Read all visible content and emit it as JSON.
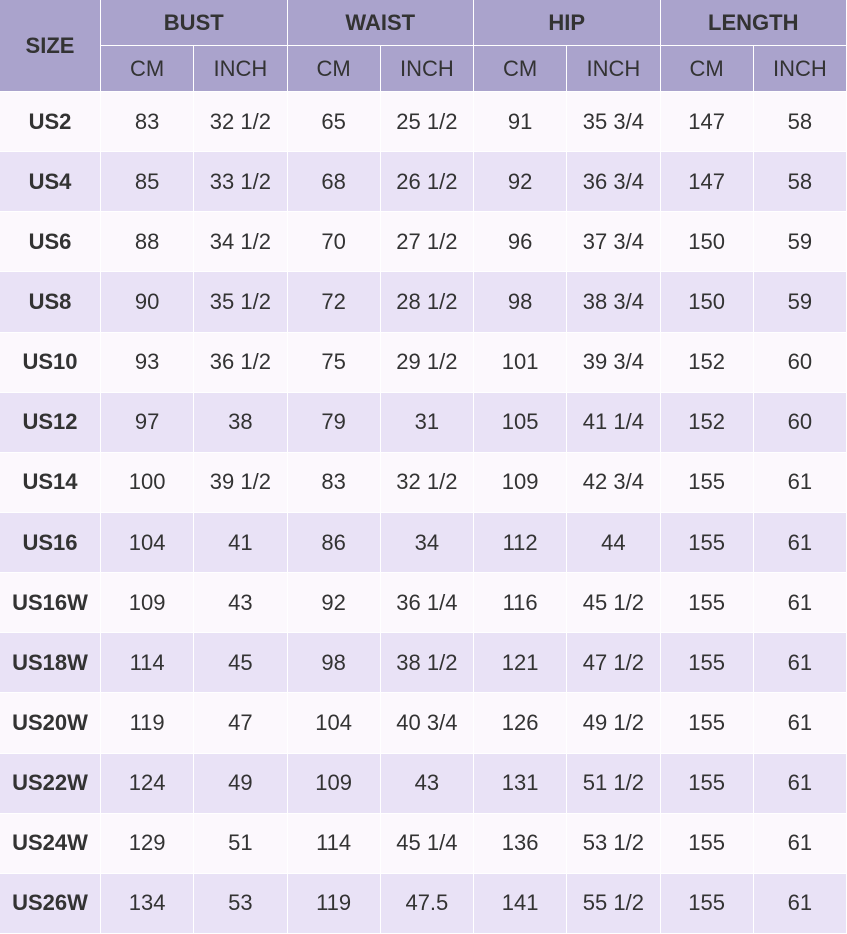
{
  "header": {
    "size": "SIZE",
    "groups": [
      "BUST",
      "WAIST",
      "HIP",
      "LENGTH"
    ],
    "units": [
      "CM",
      "INCH",
      "CM",
      "INCH",
      "CM",
      "INCH",
      "CM",
      "INCH"
    ]
  },
  "table": {
    "rows": [
      [
        "US2",
        "83",
        "32 1/2",
        "65",
        "25 1/2",
        "91",
        "35 3/4",
        "147",
        "58"
      ],
      [
        "US4",
        "85",
        "33 1/2",
        "68",
        "26 1/2",
        "92",
        "36 3/4",
        "147",
        "58"
      ],
      [
        "US6",
        "88",
        "34 1/2",
        "70",
        "27 1/2",
        "96",
        "37 3/4",
        "150",
        "59"
      ],
      [
        "US8",
        "90",
        "35 1/2",
        "72",
        "28 1/2",
        "98",
        "38 3/4",
        "150",
        "59"
      ],
      [
        "US10",
        "93",
        "36 1/2",
        "75",
        "29 1/2",
        "101",
        "39 3/4",
        "152",
        "60"
      ],
      [
        "US12",
        "97",
        "38",
        "79",
        "31",
        "105",
        "41 1/4",
        "152",
        "60"
      ],
      [
        "US14",
        "100",
        "39 1/2",
        "83",
        "32 1/2",
        "109",
        "42 3/4",
        "155",
        "61"
      ],
      [
        "US16",
        "104",
        "41",
        "86",
        "34",
        "112",
        "44",
        "155",
        "61"
      ],
      [
        "US16W",
        "109",
        "43",
        "92",
        "36 1/4",
        "116",
        "45 1/2",
        "155",
        "61"
      ],
      [
        "US18W",
        "114",
        "45",
        "98",
        "38 1/2",
        "121",
        "47 1/2",
        "155",
        "61"
      ],
      [
        "US20W",
        "119",
        "47",
        "104",
        "40 3/4",
        "126",
        "49 1/2",
        "155",
        "61"
      ],
      [
        "US22W",
        "124",
        "49",
        "109",
        "43",
        "131",
        "51 1/2",
        "155",
        "61"
      ],
      [
        "US24W",
        "129",
        "51",
        "114",
        "45 1/4",
        "136",
        "53 1/2",
        "155",
        "61"
      ],
      [
        "US26W",
        "134",
        "53",
        "119",
        "47.5",
        "141",
        "55 1/2",
        "155",
        "61"
      ]
    ]
  }
}
